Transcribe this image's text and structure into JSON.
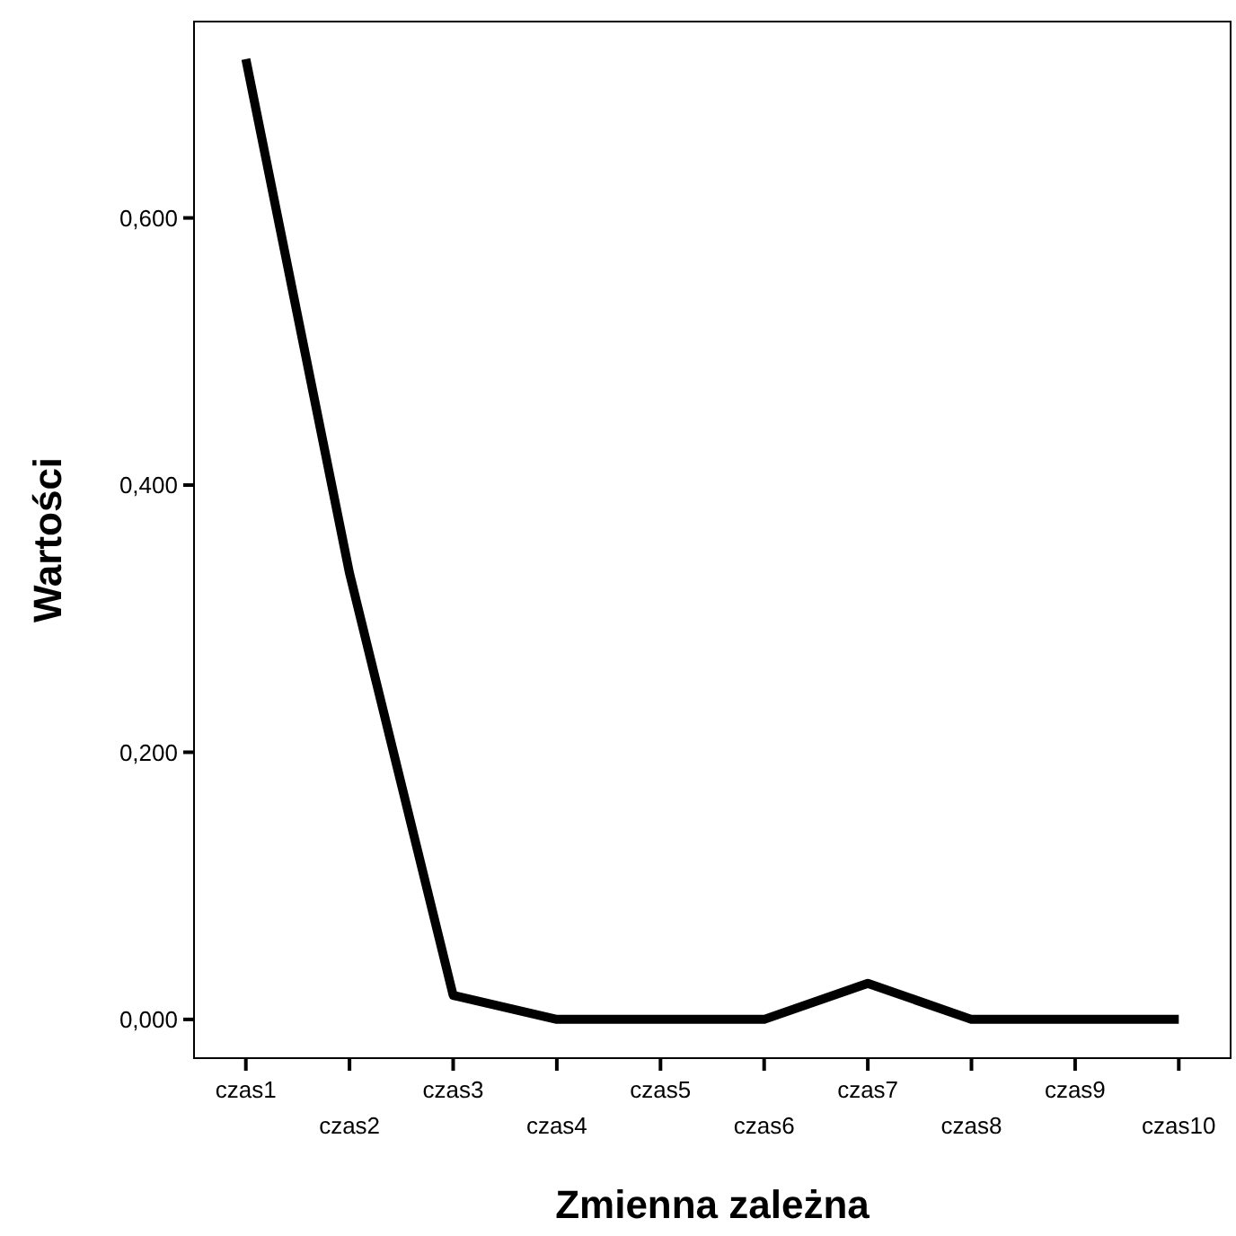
{
  "chart_data": {
    "type": "line",
    "xlabel": "Zmienna zależna",
    "ylabel": "Wartości",
    "categories": [
      "czas1",
      "czas2",
      "czas3",
      "czas4",
      "czas5",
      "czas6",
      "czas7",
      "czas8",
      "czas9",
      "czas10"
    ],
    "series": [
      {
        "color": "#000000",
        "values": [
          0.719,
          0.334,
          0.018,
          0,
          0,
          0,
          0.027,
          0,
          0,
          0
        ]
      }
    ],
    "ylim": [
      -0.029,
      0.747
    ],
    "yticks": [
      {
        "value": 0,
        "label": "0,000"
      },
      {
        "value": 0.2,
        "label": "0,200"
      },
      {
        "value": 0.4,
        "label": "0,400"
      },
      {
        "value": 0.6,
        "label": "0,600"
      }
    ],
    "grid": false,
    "marker": "none",
    "line_style": "solid"
  }
}
